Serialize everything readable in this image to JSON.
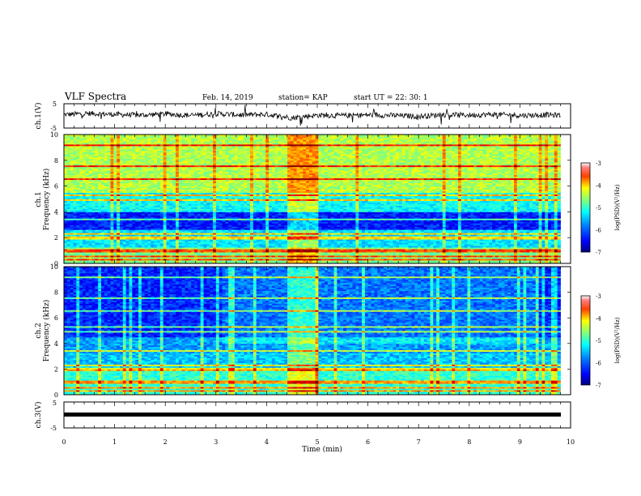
{
  "header": {
    "title": "VLF Spectra",
    "date": "Feb. 14, 2019",
    "station": "station= KAP",
    "start": "start  UT =   22: 30: 1"
  },
  "chart_data": [
    {
      "type": "line",
      "ylabel": "ch.1(V)",
      "ylim": [
        -5,
        5
      ],
      "y_ticks": [
        5,
        -5
      ],
      "x_ticks": [
        0,
        1,
        2,
        3,
        4,
        5,
        6,
        7,
        8,
        9,
        10
      ],
      "xlim": [
        0,
        10
      ],
      "series": [
        {
          "x": [
            0,
            0.5,
            1,
            1.5,
            2,
            2.5,
            3,
            3.5,
            4,
            4.5,
            5,
            5.5,
            6,
            6.5,
            7,
            7.5,
            8,
            8.5,
            9,
            9.5,
            9.8
          ],
          "y": [
            0.5,
            1.0,
            0.6,
            0.3,
            0.8,
            0.2,
            0.9,
            0.4,
            0.6,
            -0.8,
            0.3,
            0.1,
            0.4,
            0.2,
            -0.2,
            0.5,
            0.3,
            0.6,
            0.2,
            0.4,
            0.3
          ]
        }
      ]
    },
    {
      "type": "heatmap",
      "ylabel": "ch.1\nFrequency (kHz)",
      "ylim": [
        0,
        10
      ],
      "y_ticks": [
        0,
        2,
        4,
        6,
        8,
        10
      ],
      "xlim": [
        0,
        10
      ],
      "colorbar": {
        "label": "log(PSD)(V²/Hz)",
        "range": [
          -7,
          -3
        ],
        "ticks": [
          -3,
          -4,
          -5,
          -6,
          -7
        ]
      }
    },
    {
      "type": "heatmap",
      "ylabel": "ch.2\nFrequency (kHz)",
      "ylim": [
        0,
        10
      ],
      "y_ticks": [
        0,
        2,
        4,
        6,
        8,
        10
      ],
      "xlim": [
        0,
        10
      ],
      "colorbar": {
        "label": "log(PSD)(V²/Hz)",
        "range": [
          -7,
          -3
        ],
        "ticks": [
          -3,
          -4,
          -5,
          -6,
          -7
        ]
      }
    },
    {
      "type": "line",
      "ylabel": "ch.3(V)",
      "xlabel": "Time  (min)",
      "ylim": [
        -5,
        5
      ],
      "y_ticks": [
        5,
        -5
      ],
      "x_ticks": [
        0,
        1,
        2,
        3,
        4,
        5,
        6,
        7,
        8,
        9,
        10
      ],
      "xlim": [
        0,
        10
      ],
      "series": [
        {
          "x": [
            0,
            9.8
          ],
          "y": [
            -1,
            -1
          ]
        }
      ]
    }
  ],
  "colors": {
    "jet": [
      "#000080",
      "#0000ff",
      "#0080ff",
      "#00ffff",
      "#80ff80",
      "#ffff00",
      "#ff8000",
      "#ff0000",
      "#ffffff"
    ]
  }
}
